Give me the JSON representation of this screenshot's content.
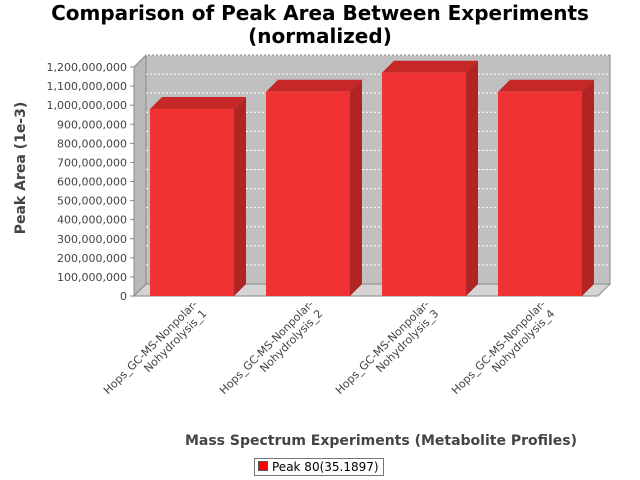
{
  "chart_data": {
    "type": "bar",
    "title": [
      "Comparison of Peak Area Between Experiments",
      "(normalized)"
    ],
    "xlabel": "Mass Spectrum Experiments (Metabolite Profiles)",
    "ylabel": "Peak Area (1e-3)",
    "categories": [
      [
        "Hops_GC-MS-Nonpolar-",
        "Nohydrolysis_1"
      ],
      [
        "Hops_GC-MS-Nonpolar-",
        "Nohydrolysis_2"
      ],
      [
        "Hops_GC-MS-Nonpolar-",
        "Nohydrolysis_3"
      ],
      [
        "Hops_GC-MS-Nonpolar-",
        "Nohydrolysis_4"
      ]
    ],
    "series": [
      {
        "name": "Peak 80(35.1897)",
        "values": [
          980000000,
          1070000000,
          1170000000,
          1070000000
        ]
      }
    ],
    "ylim": [
      0,
      1200000000
    ],
    "yticks": [
      0,
      100000000,
      200000000,
      300000000,
      400000000,
      500000000,
      600000000,
      700000000,
      800000000,
      900000000,
      1000000000,
      1100000000,
      1200000000
    ],
    "ytick_labels": [
      "0",
      "100,000,000",
      "200,000,000",
      "300,000,000",
      "400,000,000",
      "500,000,000",
      "600,000,000",
      "700,000,000",
      "800,000,000",
      "900,000,000",
      "1,000,000,000",
      "1,100,000,000",
      "1,200,000,000"
    ],
    "grid": true,
    "style": "3d",
    "legend_position": "bottom",
    "colors": {
      "bar_front": "#f03232",
      "bar_top": "#c62828",
      "bar_side": "#b02424",
      "plot_back": "#c0c0c0",
      "plot_floor": "#d4d4d4",
      "grid": "#ffffff",
      "legend_swatch": "#ff0000"
    }
  }
}
